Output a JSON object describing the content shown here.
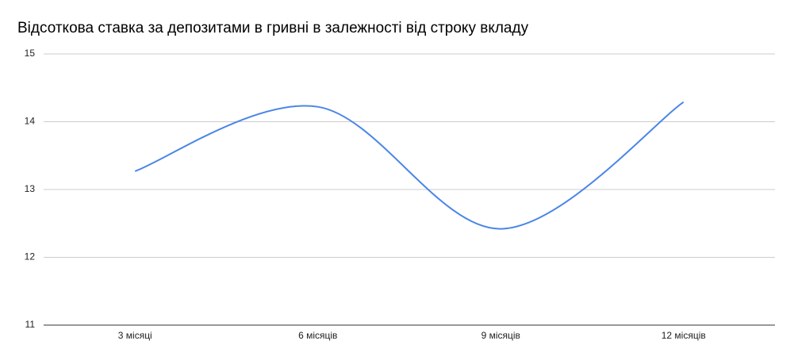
{
  "chart_data": {
    "type": "line",
    "title": "Відсоткова ставка за депозитами в гривні в залежності від строку вкладу",
    "categories": [
      "3 місяці",
      "6 місяців",
      "9 місяців",
      "12 місяців"
    ],
    "series": [
      {
        "color": "#4a86e8",
        "values": [
          13.27,
          14.22,
          12.42,
          14.29
        ]
      }
    ],
    "ylim": [
      11,
      15
    ],
    "yticks": [
      11,
      12,
      13,
      14,
      15
    ],
    "grid": true,
    "smooth": true
  }
}
